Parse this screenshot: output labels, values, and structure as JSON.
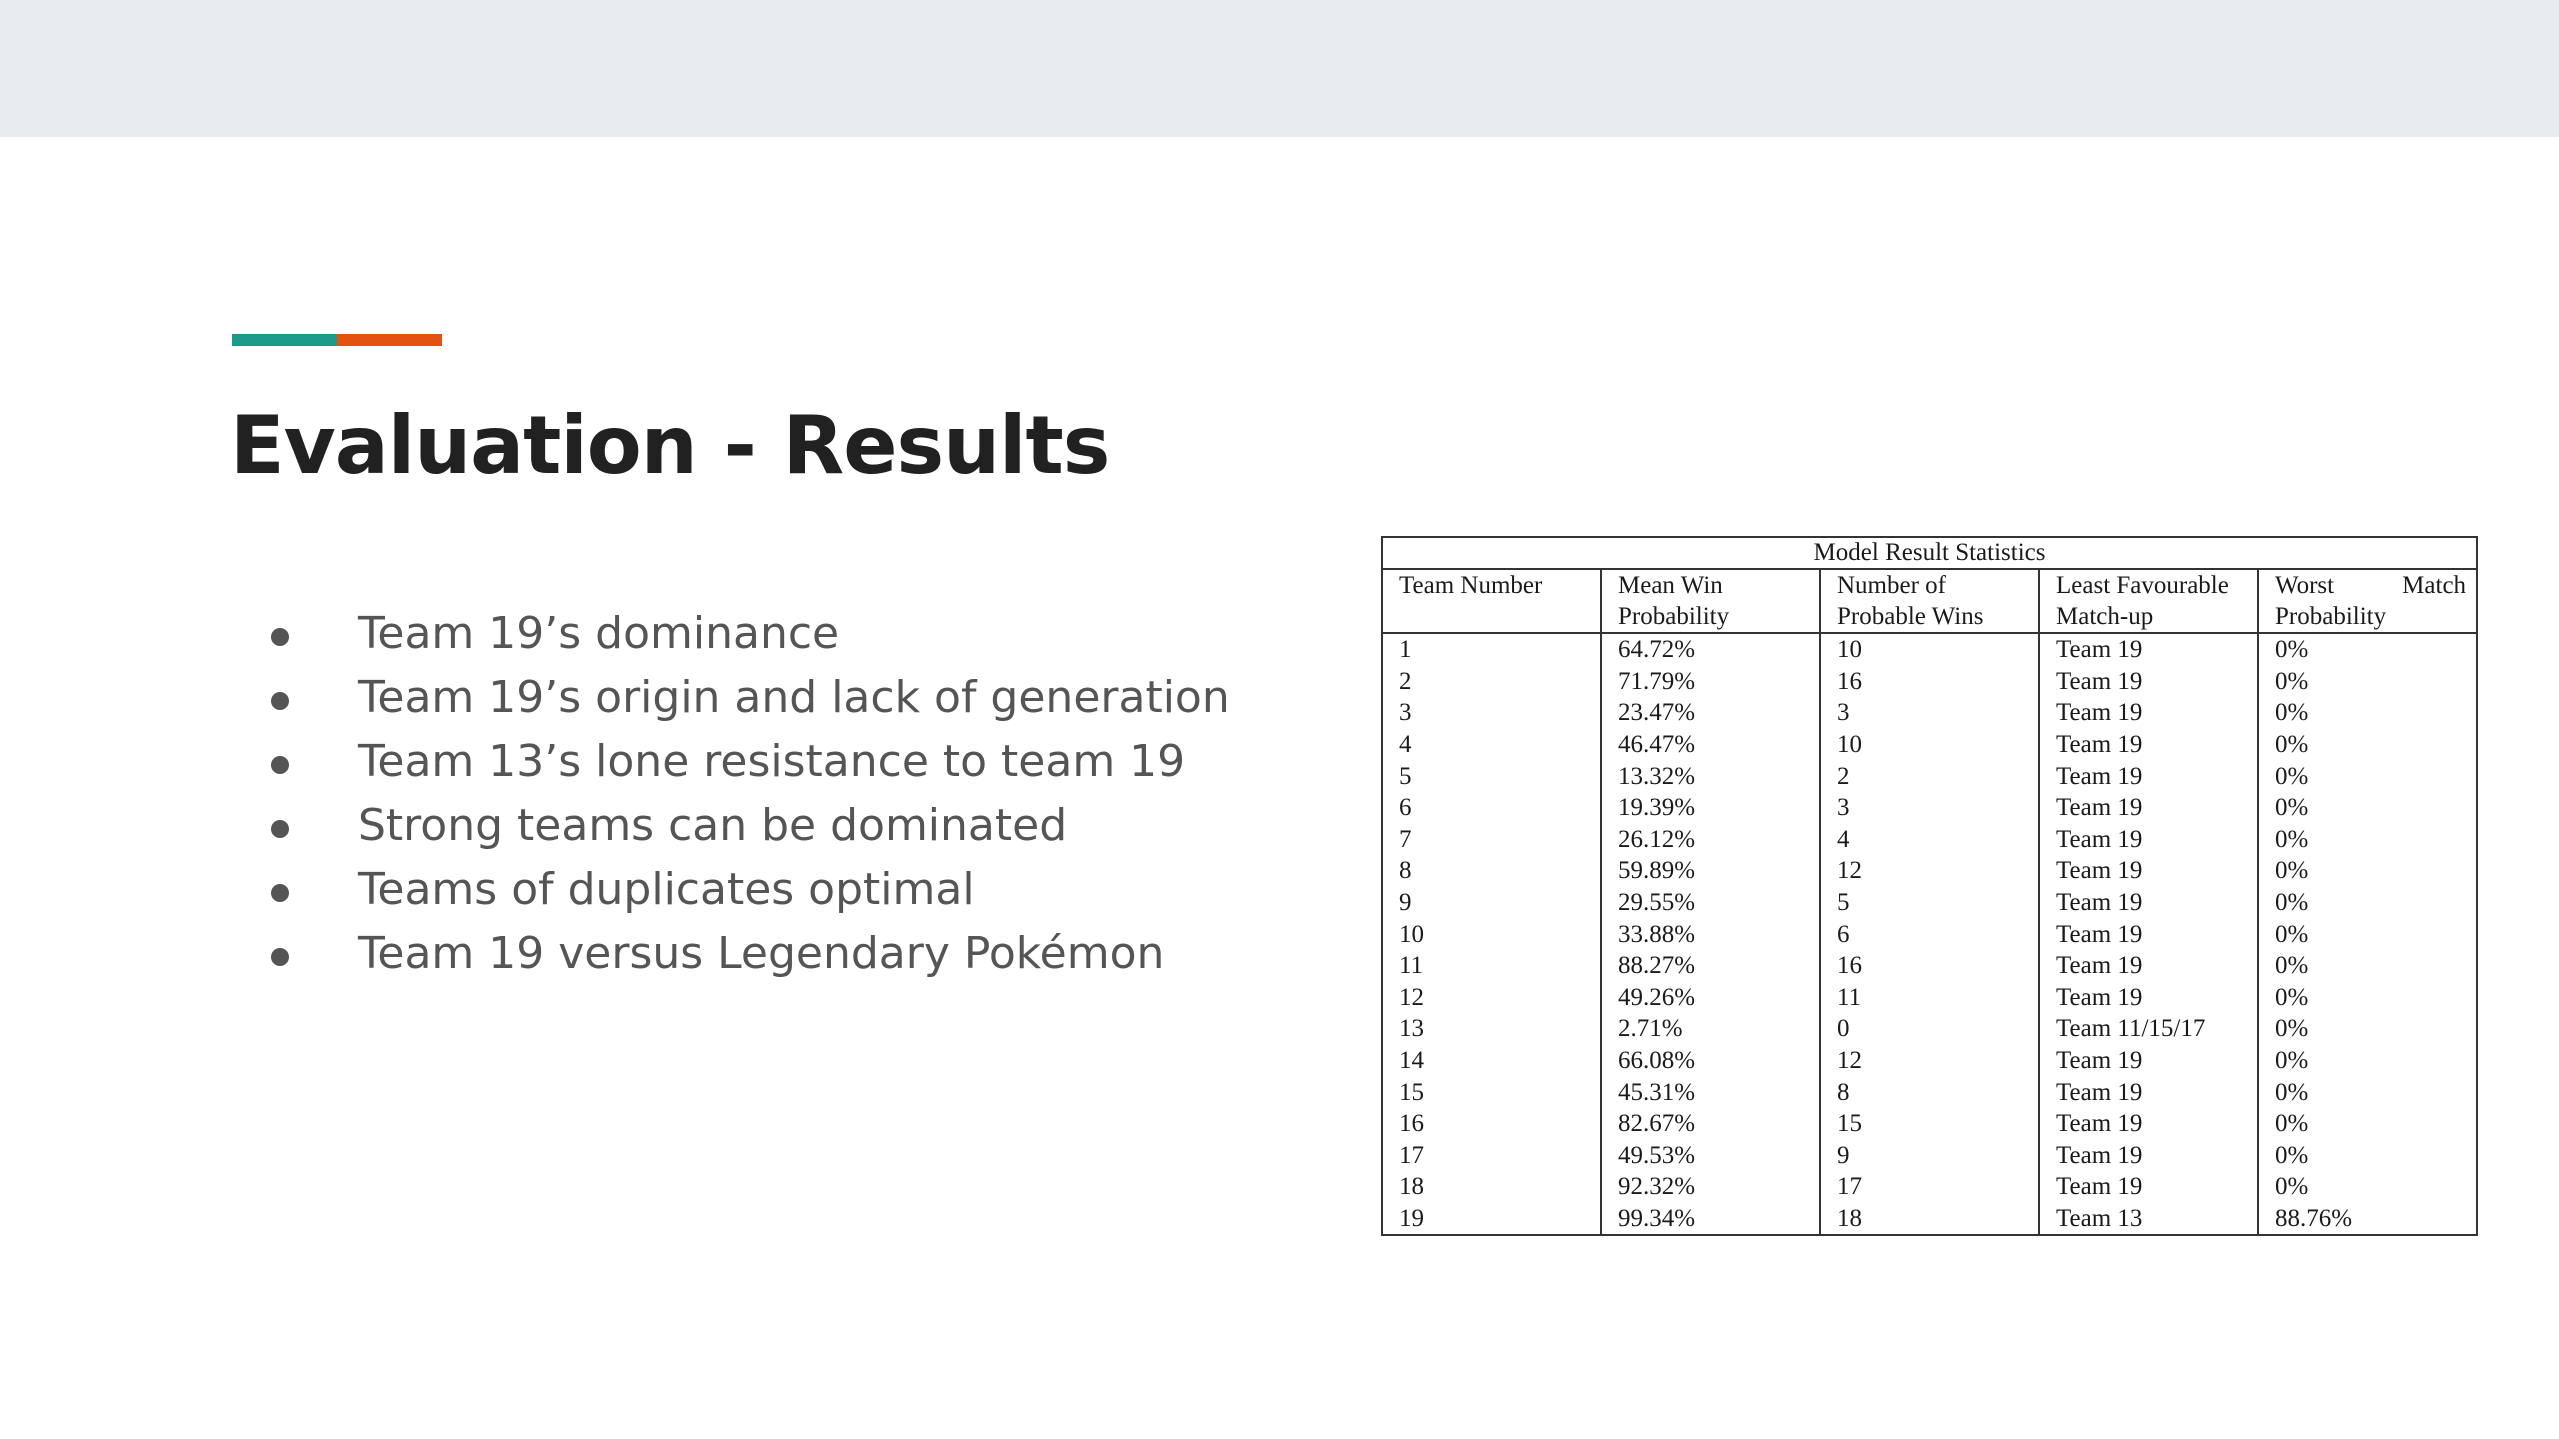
{
  "colors": {
    "top_band": "#e8ecee",
    "accent_teal": "#1a9b8a",
    "accent_orange": "#e2530f",
    "title": "#212121",
    "body_text": "#555555"
  },
  "slide": {
    "title": "Evaluation - Results",
    "bullets": [
      "Team 19’s dominance",
      "Team 19’s origin and lack of generation",
      "Team 13’s lone resistance to team 19",
      "Strong teams can be dominated",
      "Teams of duplicates optimal",
      "Team 19 versus Legendary Pokémon"
    ]
  },
  "table": {
    "caption": "Model Result Statistics",
    "headers": [
      "Team Number",
      "Mean Win Probability",
      "Number of Probable Wins",
      "Least Favourable Match-up",
      "Worst Match Probability"
    ],
    "rows": [
      [
        "1",
        "64.72%",
        "10",
        "Team 19",
        "0%"
      ],
      [
        "2",
        "71.79%",
        "16",
        "Team 19",
        "0%"
      ],
      [
        "3",
        "23.47%",
        "3",
        "Team 19",
        "0%"
      ],
      [
        "4",
        "46.47%",
        "10",
        "Team 19",
        "0%"
      ],
      [
        "5",
        "13.32%",
        "2",
        "Team 19",
        "0%"
      ],
      [
        "6",
        "19.39%",
        "3",
        "Team 19",
        "0%"
      ],
      [
        "7",
        "26.12%",
        "4",
        "Team 19",
        "0%"
      ],
      [
        "8",
        "59.89%",
        "12",
        "Team 19",
        "0%"
      ],
      [
        "9",
        "29.55%",
        "5",
        "Team 19",
        "0%"
      ],
      [
        "10",
        "33.88%",
        "6",
        "Team 19",
        "0%"
      ],
      [
        "11",
        "88.27%",
        "16",
        "Team 19",
        "0%"
      ],
      [
        "12",
        "49.26%",
        "11",
        "Team 19",
        "0%"
      ],
      [
        "13",
        "2.71%",
        "0",
        "Team 11/15/17",
        "0%"
      ],
      [
        "14",
        "66.08%",
        "12",
        "Team 19",
        "0%"
      ],
      [
        "15",
        "45.31%",
        "8",
        "Team 19",
        "0%"
      ],
      [
        "16",
        "82.67%",
        "15",
        "Team 19",
        "0%"
      ],
      [
        "17",
        "49.53%",
        "9",
        "Team 19",
        "0%"
      ],
      [
        "18",
        "92.32%",
        "17",
        "Team 19",
        "0%"
      ],
      [
        "19",
        "99.34%",
        "18",
        "Team 13",
        "88.76%"
      ]
    ]
  }
}
